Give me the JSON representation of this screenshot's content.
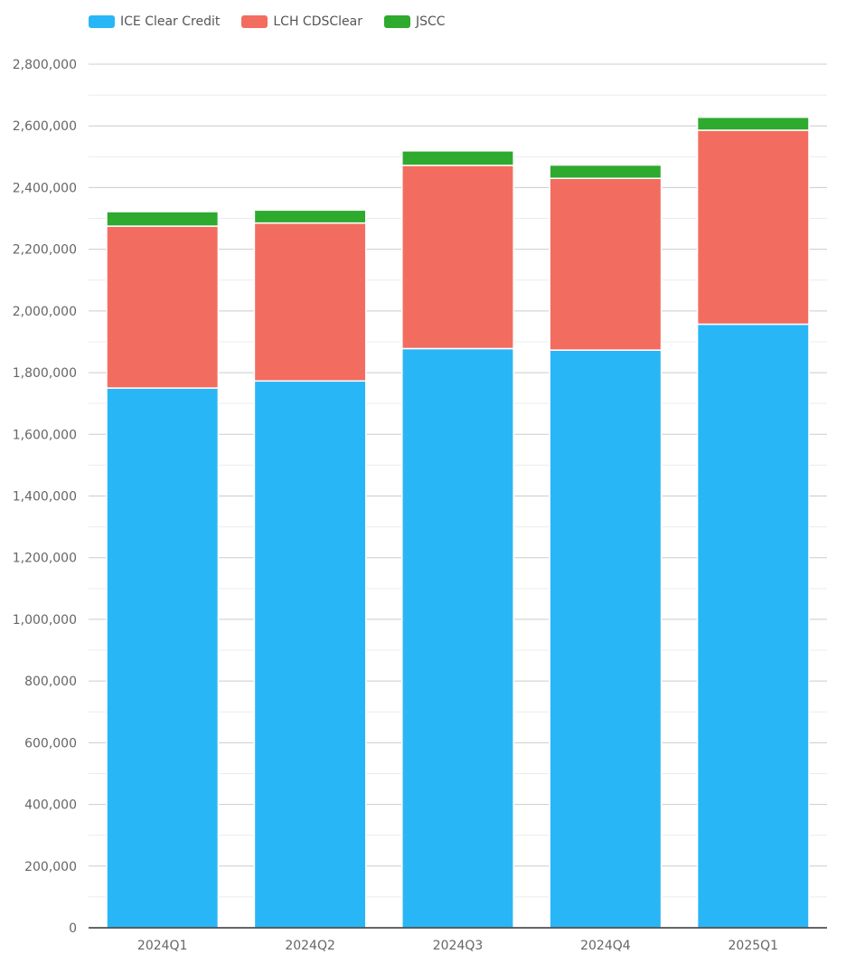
{
  "chart_data": {
    "type": "bar",
    "stacked": true,
    "categories": [
      "2024Q1",
      "2024Q2",
      "2024Q3",
      "2024Q4",
      "2025Q1"
    ],
    "series": [
      {
        "name": "ICE Clear Credit",
        "color": "#29b6f6",
        "values": [
          1750000,
          1773000,
          1878000,
          1873000,
          1957000
        ]
      },
      {
        "name": "LCH CDSClear",
        "color": "#f26d60",
        "values": [
          525000,
          512000,
          594000,
          557000,
          629000
        ]
      },
      {
        "name": "JSCC",
        "color": "#2eaa2e",
        "values": [
          47000,
          42000,
          47000,
          43000,
          42000
        ]
      }
    ],
    "ylim": [
      0,
      2800000
    ],
    "ytick_step": 200000,
    "yticks": [
      "0",
      "200,000",
      "400,000",
      "600,000",
      "800,000",
      "1,000,000",
      "1,200,000",
      "1,400,000",
      "1,600,000",
      "1,800,000",
      "2,000,000",
      "2,200,000",
      "2,400,000",
      "2,600,000",
      "2,800,000"
    ],
    "grid": true,
    "legend": "top-left",
    "title": "",
    "xlabel": "",
    "ylabel": ""
  }
}
